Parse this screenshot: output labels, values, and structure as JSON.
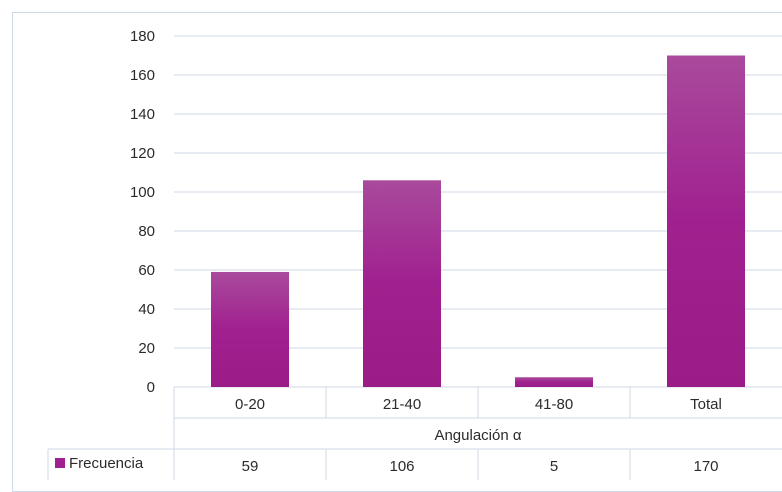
{
  "chart_data": {
    "type": "bar",
    "categories": [
      "0-20",
      "21-40",
      "41-80",
      "Total"
    ],
    "series": [
      {
        "name": "Frecuencia",
        "values": [
          59,
          106,
          5,
          170
        ]
      }
    ],
    "xlabel": "Angulación α",
    "ylabel": "",
    "title": "",
    "ylim": [
      0,
      180
    ],
    "yticks": [
      0,
      20,
      40,
      60,
      80,
      100,
      120,
      140,
      160,
      180
    ],
    "grid": true,
    "data_table": true,
    "bar_color": "#a0208f"
  }
}
